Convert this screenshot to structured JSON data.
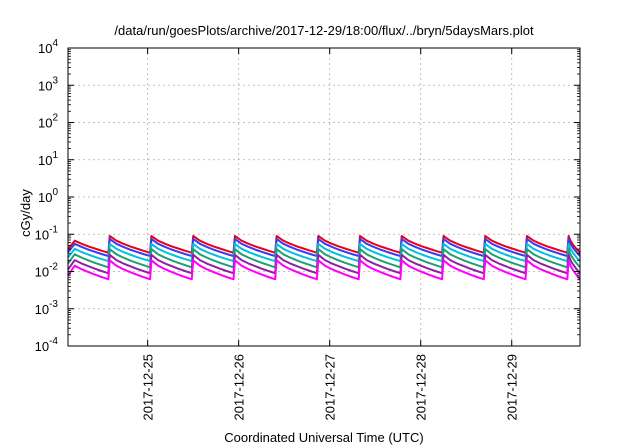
{
  "chart_data": {
    "type": "line",
    "title": "/data/run/goesPlots/archive/2017-12-29/18:00/flux/../bryn/5daysMars.plot",
    "xlabel": "Coordinated Universal Time (UTC)",
    "ylabel": "cGy/day",
    "y_scale": "log",
    "ylim_exponent": [
      -4,
      4
    ],
    "y_ticks": [
      {
        "base": "10",
        "exp": "-4"
      },
      {
        "base": "10",
        "exp": "-3"
      },
      {
        "base": "10",
        "exp": "-2"
      },
      {
        "base": "10",
        "exp": "-1"
      },
      {
        "base": "10",
        "exp": "0"
      },
      {
        "base": "10",
        "exp": "1"
      },
      {
        "base": "10",
        "exp": "2"
      },
      {
        "base": "10",
        "exp": "3"
      },
      {
        "base": "10",
        "exp": "4"
      }
    ],
    "x_range_days": [
      "2017-12-24 03:00",
      "2017-12-29 18:00"
    ],
    "x_ticks": [
      "2017-12-25",
      "2017-12-26",
      "2017-12-27",
      "2017-12-28",
      "2017-12-29"
    ],
    "grid": true,
    "pattern": "sawtooth, ~11 h period, sharp rise then decay",
    "series": [
      {
        "color": "#e8001c",
        "peak": 0.09,
        "trough": 0.032
      },
      {
        "color": "#3a3af0",
        "peak": 0.075,
        "trough": 0.026
      },
      {
        "color": "#00bfe0",
        "peak": 0.055,
        "trough": 0.019
      },
      {
        "color": "#20a070",
        "peak": 0.04,
        "trough": 0.013
      },
      {
        "color": "#9020a0",
        "peak": 0.028,
        "trough": 0.009
      },
      {
        "color": "#ff00ff",
        "peak": 0.02,
        "trough": 0.0062
      }
    ]
  }
}
